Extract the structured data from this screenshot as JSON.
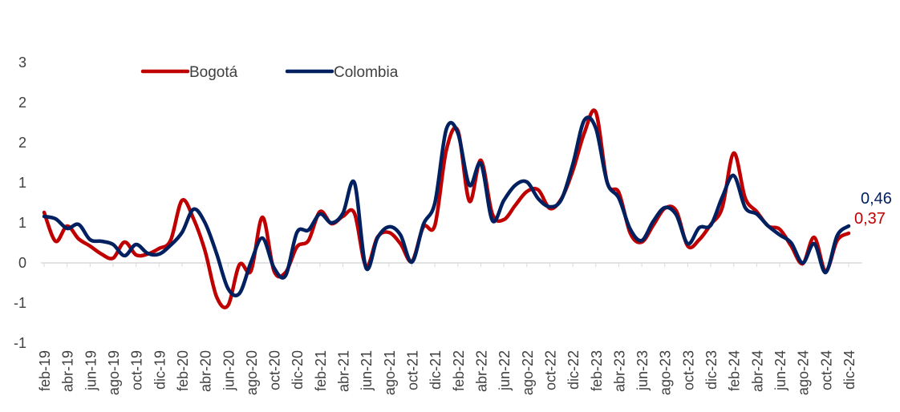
{
  "chart_data": {
    "type": "line",
    "title": "",
    "xlabel": "",
    "ylabel": "",
    "ylim": [
      -1,
      3
    ],
    "y_tick_labels": [
      "-1",
      "-1",
      "0",
      "1",
      "1",
      "2",
      "2",
      "3"
    ],
    "x": [
      "feb-19",
      "mar-19",
      "abr-19",
      "may-19",
      "jun-19",
      "jul-19",
      "ago-19",
      "sep-19",
      "oct-19",
      "nov-19",
      "dic-19",
      "ene-20",
      "feb-20",
      "mar-20",
      "abr-20",
      "may-20",
      "jun-20",
      "jul-20",
      "ago-20",
      "sep-20",
      "oct-20",
      "nov-20",
      "dic-20",
      "ene-21",
      "feb-21",
      "mar-21",
      "abr-21",
      "may-21",
      "jun-21",
      "jul-21",
      "ago-21",
      "sep-21",
      "oct-21",
      "nov-21",
      "dic-21",
      "ene-22",
      "feb-22",
      "mar-22",
      "abr-22",
      "may-22",
      "jun-22",
      "jul-22",
      "ago-22",
      "sep-22",
      "oct-22",
      "nov-22",
      "dic-22",
      "ene-23",
      "feb-23",
      "mar-23",
      "abr-23",
      "may-23",
      "jun-23",
      "jul-23",
      "ago-23",
      "sep-23",
      "oct-23",
      "nov-23",
      "dic-23",
      "ene-24",
      "feb-24",
      "mar-24",
      "abr-24",
      "may-24",
      "jun-24",
      "jul-24",
      "ago-24",
      "sep-24",
      "oct-24",
      "nov-24",
      "dic-24"
    ],
    "x_tick_labels": [
      "feb-19",
      "abr-19",
      "jun-19",
      "ago-19",
      "oct-19",
      "dic-19",
      "feb-20",
      "abr-20",
      "jun-20",
      "ago-20",
      "oct-20",
      "dic-20",
      "feb-21",
      "abr-21",
      "jun-21",
      "ago-21",
      "oct-21",
      "dic-21",
      "feb-22",
      "abr-22",
      "jun-22",
      "ago-22",
      "oct-22",
      "dic-22",
      "feb-23",
      "abr-23",
      "jun-23",
      "ago-23",
      "oct-23",
      "dic-23",
      "feb-24",
      "abr-24",
      "jun-24",
      "ago-24",
      "oct-24",
      "dic-24"
    ],
    "legend_position": "top-left",
    "series": [
      {
        "name": "Bogotá",
        "color": "#c00000",
        "values": [
          0.63,
          0.27,
          0.46,
          0.3,
          0.21,
          0.11,
          0.06,
          0.26,
          0.1,
          0.11,
          0.18,
          0.28,
          0.78,
          0.55,
          0.15,
          -0.42,
          -0.53,
          -0.02,
          -0.1,
          0.57,
          -0.1,
          -0.12,
          0.2,
          0.28,
          0.64,
          0.49,
          0.58,
          0.62,
          -0.04,
          0.32,
          0.38,
          0.24,
          0.02,
          0.45,
          0.47,
          1.41,
          1.65,
          0.77,
          1.28,
          0.61,
          0.54,
          0.72,
          0.89,
          0.91,
          0.68,
          0.8,
          1.15,
          1.62,
          1.88,
          1.0,
          0.88,
          0.37,
          0.26,
          0.47,
          0.68,
          0.65,
          0.21,
          0.29,
          0.48,
          0.69,
          1.37,
          0.81,
          0.64,
          0.46,
          0.42,
          0.21,
          -0.01,
          0.32,
          -0.1,
          0.28,
          0.37
        ]
      },
      {
        "name": "Colombia",
        "color": "#002060",
        "values": [
          0.58,
          0.55,
          0.43,
          0.48,
          0.29,
          0.27,
          0.23,
          0.09,
          0.23,
          0.12,
          0.11,
          0.22,
          0.38,
          0.67,
          0.5,
          0.12,
          -0.32,
          -0.38,
          0.01,
          0.31,
          -0.06,
          -0.16,
          0.38,
          0.41,
          0.61,
          0.5,
          0.62,
          1.0,
          -0.06,
          0.31,
          0.45,
          0.35,
          0.01,
          0.48,
          0.75,
          1.67,
          1.62,
          0.97,
          1.24,
          0.53,
          0.78,
          0.97,
          1.01,
          0.8,
          0.7,
          0.79,
          1.23,
          1.78,
          1.68,
          1.0,
          0.81,
          0.42,
          0.28,
          0.52,
          0.69,
          0.6,
          0.24,
          0.44,
          0.47,
          0.82,
          1.09,
          0.69,
          0.61,
          0.46,
          0.35,
          0.25,
          0.0,
          0.24,
          -0.12,
          0.34,
          0.46
        ]
      }
    ],
    "end_labels": [
      {
        "series": "Colombia",
        "text": "0,46",
        "color": "#002060"
      },
      {
        "series": "Bogotá",
        "text": "0,37",
        "color": "#c00000"
      }
    ]
  }
}
